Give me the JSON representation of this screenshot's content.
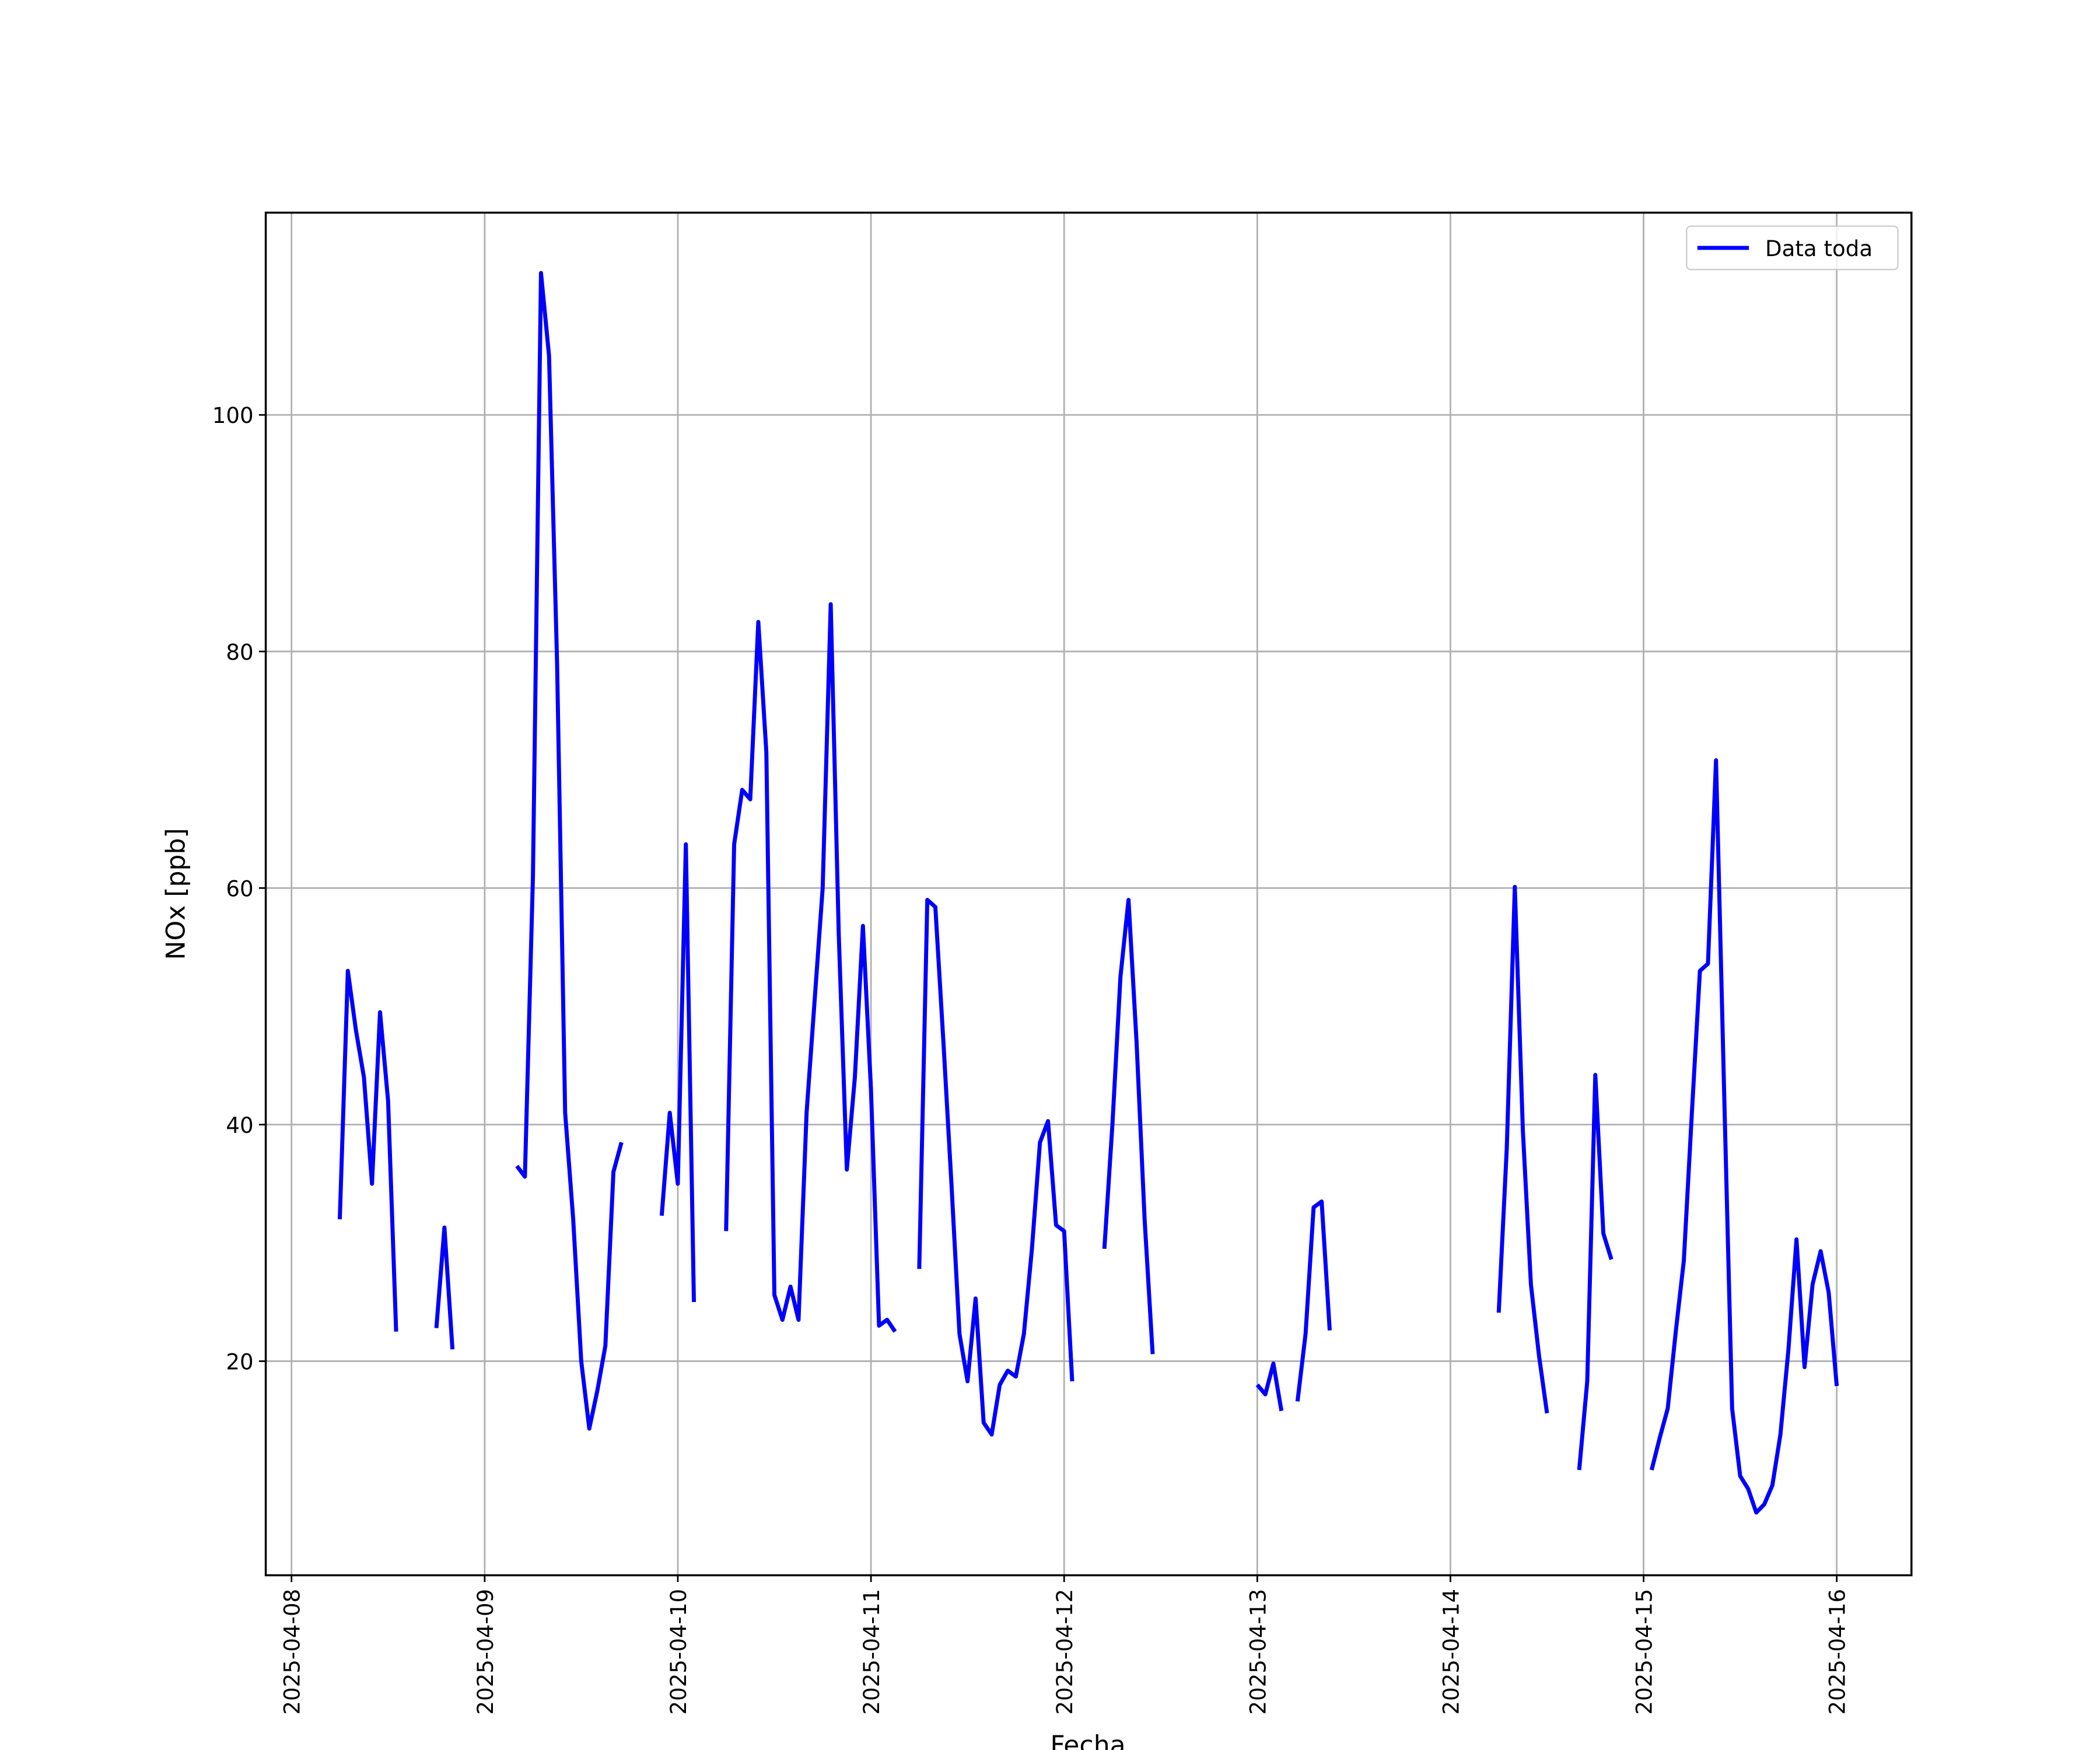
{
  "chart_data": {
    "type": "line",
    "xlabel": "Fecha",
    "ylabel": "NOx [ppb]",
    "xlim": [
      "2025-04-07 20:48",
      "2025-04-16 09:17"
    ],
    "ylim": [
      1.9,
      117.1
    ],
    "xticks": [
      "2025-04-08",
      "2025-04-09",
      "2025-04-10",
      "2025-04-11",
      "2025-04-12",
      "2025-04-13",
      "2025-04-14",
      "2025-04-15",
      "2025-04-16"
    ],
    "yticks": [
      20,
      40,
      60,
      80,
      100
    ],
    "grid": true,
    "legend": "upper right",
    "x": [
      "2025-04-08 06:00",
      "2025-04-08 07:00",
      "2025-04-08 08:00",
      "2025-04-08 09:00",
      "2025-04-08 10:00",
      "2025-04-08 11:00",
      "2025-04-08 12:00",
      "2025-04-08 13:00",
      "2025-04-08 14:00",
      "2025-04-08 18:00",
      "2025-04-08 19:00",
      "2025-04-08 20:00",
      "2025-04-08 21:00",
      "2025-04-09 04:00",
      "2025-04-09 05:00",
      "2025-04-09 06:00",
      "2025-04-09 07:00",
      "2025-04-09 08:00",
      "2025-04-09 09:00",
      "2025-04-09 10:00",
      "2025-04-09 11:00",
      "2025-04-09 12:00",
      "2025-04-09 13:00",
      "2025-04-09 14:00",
      "2025-04-09 15:00",
      "2025-04-09 16:00",
      "2025-04-09 17:00",
      "2025-04-09 18:00",
      "2025-04-09 22:00",
      "2025-04-09 23:00",
      "2025-04-10 00:00",
      "2025-04-10 01:00",
      "2025-04-10 02:00",
      "2025-04-10 03:00",
      "2025-04-10 06:00",
      "2025-04-10 07:00",
      "2025-04-10 08:00",
      "2025-04-10 09:00",
      "2025-04-10 10:00",
      "2025-04-10 11:00",
      "2025-04-10 12:00",
      "2025-04-10 13:00",
      "2025-04-10 14:00",
      "2025-04-10 15:00",
      "2025-04-10 16:00",
      "2025-04-10 17:00",
      "2025-04-10 18:00",
      "2025-04-10 19:00",
      "2025-04-10 20:00",
      "2025-04-10 21:00",
      "2025-04-10 22:00",
      "2025-04-10 23:00",
      "2025-04-11 00:00",
      "2025-04-11 01:00",
      "2025-04-11 02:00",
      "2025-04-11 03:00",
      "2025-04-11 04:00",
      "2025-04-11 06:00",
      "2025-04-11 07:00",
      "2025-04-11 08:00",
      "2025-04-11 09:00",
      "2025-04-11 10:00",
      "2025-04-11 11:00",
      "2025-04-11 12:00",
      "2025-04-11 13:00",
      "2025-04-11 14:00",
      "2025-04-11 15:00",
      "2025-04-11 16:00",
      "2025-04-11 17:00",
      "2025-04-11 18:00",
      "2025-04-11 19:00",
      "2025-04-11 20:00",
      "2025-04-11 21:00",
      "2025-04-11 22:00",
      "2025-04-11 23:00",
      "2025-04-12 00:00",
      "2025-04-12 01:00",
      "2025-04-12 02:00",
      "2025-04-12 05:00",
      "2025-04-12 06:00",
      "2025-04-12 07:00",
      "2025-04-12 08:00",
      "2025-04-12 09:00",
      "2025-04-12 10:00",
      "2025-04-12 11:00",
      "2025-04-12 12:00",
      "2025-04-13 00:00",
      "2025-04-13 01:00",
      "2025-04-13 02:00",
      "2025-04-13 03:00",
      "2025-04-13 04:00",
      "2025-04-13 05:00",
      "2025-04-13 06:00",
      "2025-04-13 07:00",
      "2025-04-13 08:00",
      "2025-04-13 09:00",
      "2025-04-13 10:00",
      "2025-04-14 06:00",
      "2025-04-14 07:00",
      "2025-04-14 08:00",
      "2025-04-14 09:00",
      "2025-04-14 10:00",
      "2025-04-14 11:00",
      "2025-04-14 12:00",
      "2025-04-14 13:00",
      "2025-04-14 16:00",
      "2025-04-14 17:00",
      "2025-04-14 18:00",
      "2025-04-14 19:00",
      "2025-04-14 20:00",
      "2025-04-14 21:00",
      "2025-04-15 01:00",
      "2025-04-15 02:00",
      "2025-04-15 03:00",
      "2025-04-15 04:00",
      "2025-04-15 05:00",
      "2025-04-15 06:00",
      "2025-04-15 07:00",
      "2025-04-15 08:00",
      "2025-04-15 09:00",
      "2025-04-15 10:00",
      "2025-04-15 11:00",
      "2025-04-15 12:00",
      "2025-04-15 13:00",
      "2025-04-15 14:00",
      "2025-04-15 15:00",
      "2025-04-15 16:00",
      "2025-04-15 17:00",
      "2025-04-15 18:00",
      "2025-04-15 19:00",
      "2025-04-15 20:00",
      "2025-04-15 21:00",
      "2025-04-15 22:00",
      "2025-04-15 23:00",
      "2025-04-16 00:00"
    ],
    "series": [
      {
        "name": "Data toda",
        "color": "#0000ff",
        "values": [
          32,
          53,
          48,
          44,
          35,
          49.5,
          42,
          22.5,
          null,
          22.8,
          31.3,
          21,
          null,
          36.5,
          35.6,
          61,
          112,
          105,
          79,
          41,
          32,
          20,
          14.3,
          17.5,
          21.3,
          36,
          38.5,
          null,
          32.3,
          41,
          35,
          63.7,
          25,
          null,
          31,
          63.7,
          68.3,
          67.5,
          82.5,
          71.5,
          25.6,
          23.5,
          26.3,
          23.5,
          41,
          50.5,
          60,
          84,
          56,
          36.2,
          44,
          56.8,
          43,
          23,
          23.5,
          22.5,
          null,
          27.8,
          59,
          58.4,
          47,
          35,
          22.3,
          18.3,
          25.3,
          14.8,
          13.8,
          18,
          19.2,
          18.7,
          22.3,
          29.5,
          38.5,
          40.3,
          31.5,
          31,
          18.3,
          null,
          29.5,
          40,
          52.5,
          59,
          47,
          32,
          20.6,
          null,
          18,
          17.2,
          19.8,
          15.8,
          null,
          16.6,
          22.3,
          33,
          33.5,
          22.6,
          null,
          24.1,
          38,
          60.1,
          39.5,
          26.5,
          20.5,
          15.6,
          null,
          10.8,
          18.3,
          44.2,
          30.8,
          28.6,
          null,
          10.8,
          13.5,
          16,
          22.5,
          28.5,
          41,
          53,
          53.6,
          70.8,
          43,
          16,
          10.3,
          9.2,
          7.2,
          7.9,
          9.5,
          13.8,
          21,
          30.3,
          19.5,
          26.5,
          29.3,
          25.8,
          17.9
        ]
      }
    ]
  }
}
